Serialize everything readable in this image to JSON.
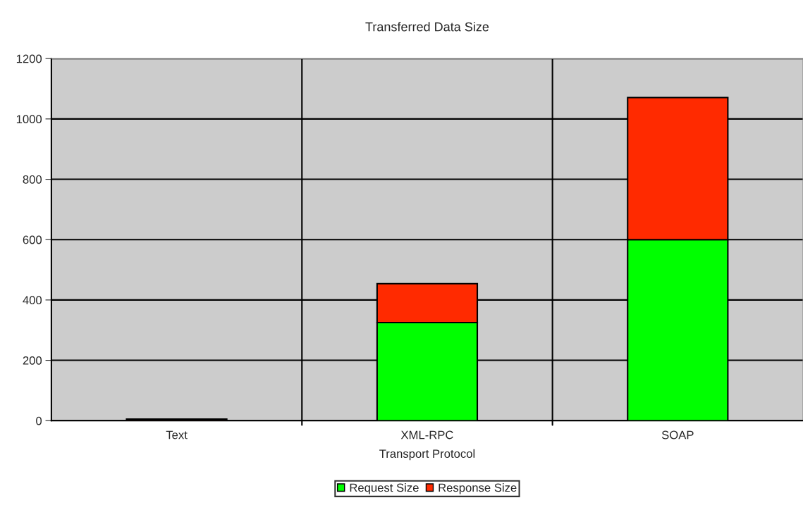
{
  "chart_data": {
    "type": "bar",
    "title": "Transferred Data Size",
    "xlabel": "Transport Protocol",
    "categories": [
      "Text",
      "XML-RPC",
      "SOAP"
    ],
    "series": [
      {
        "name": "Request Size",
        "color": "#00ff00",
        "values": [
          null,
          325,
          600
        ]
      },
      {
        "name": "Response Size",
        "color": "#ff2a00",
        "values": [
          5,
          129,
          471
        ]
      }
    ],
    "stacked": true,
    "ylim": [
      0,
      1200
    ],
    "yticks": [
      0,
      200,
      400,
      600,
      800,
      1000,
      1200
    ],
    "grid": true,
    "legend": "bottom"
  }
}
